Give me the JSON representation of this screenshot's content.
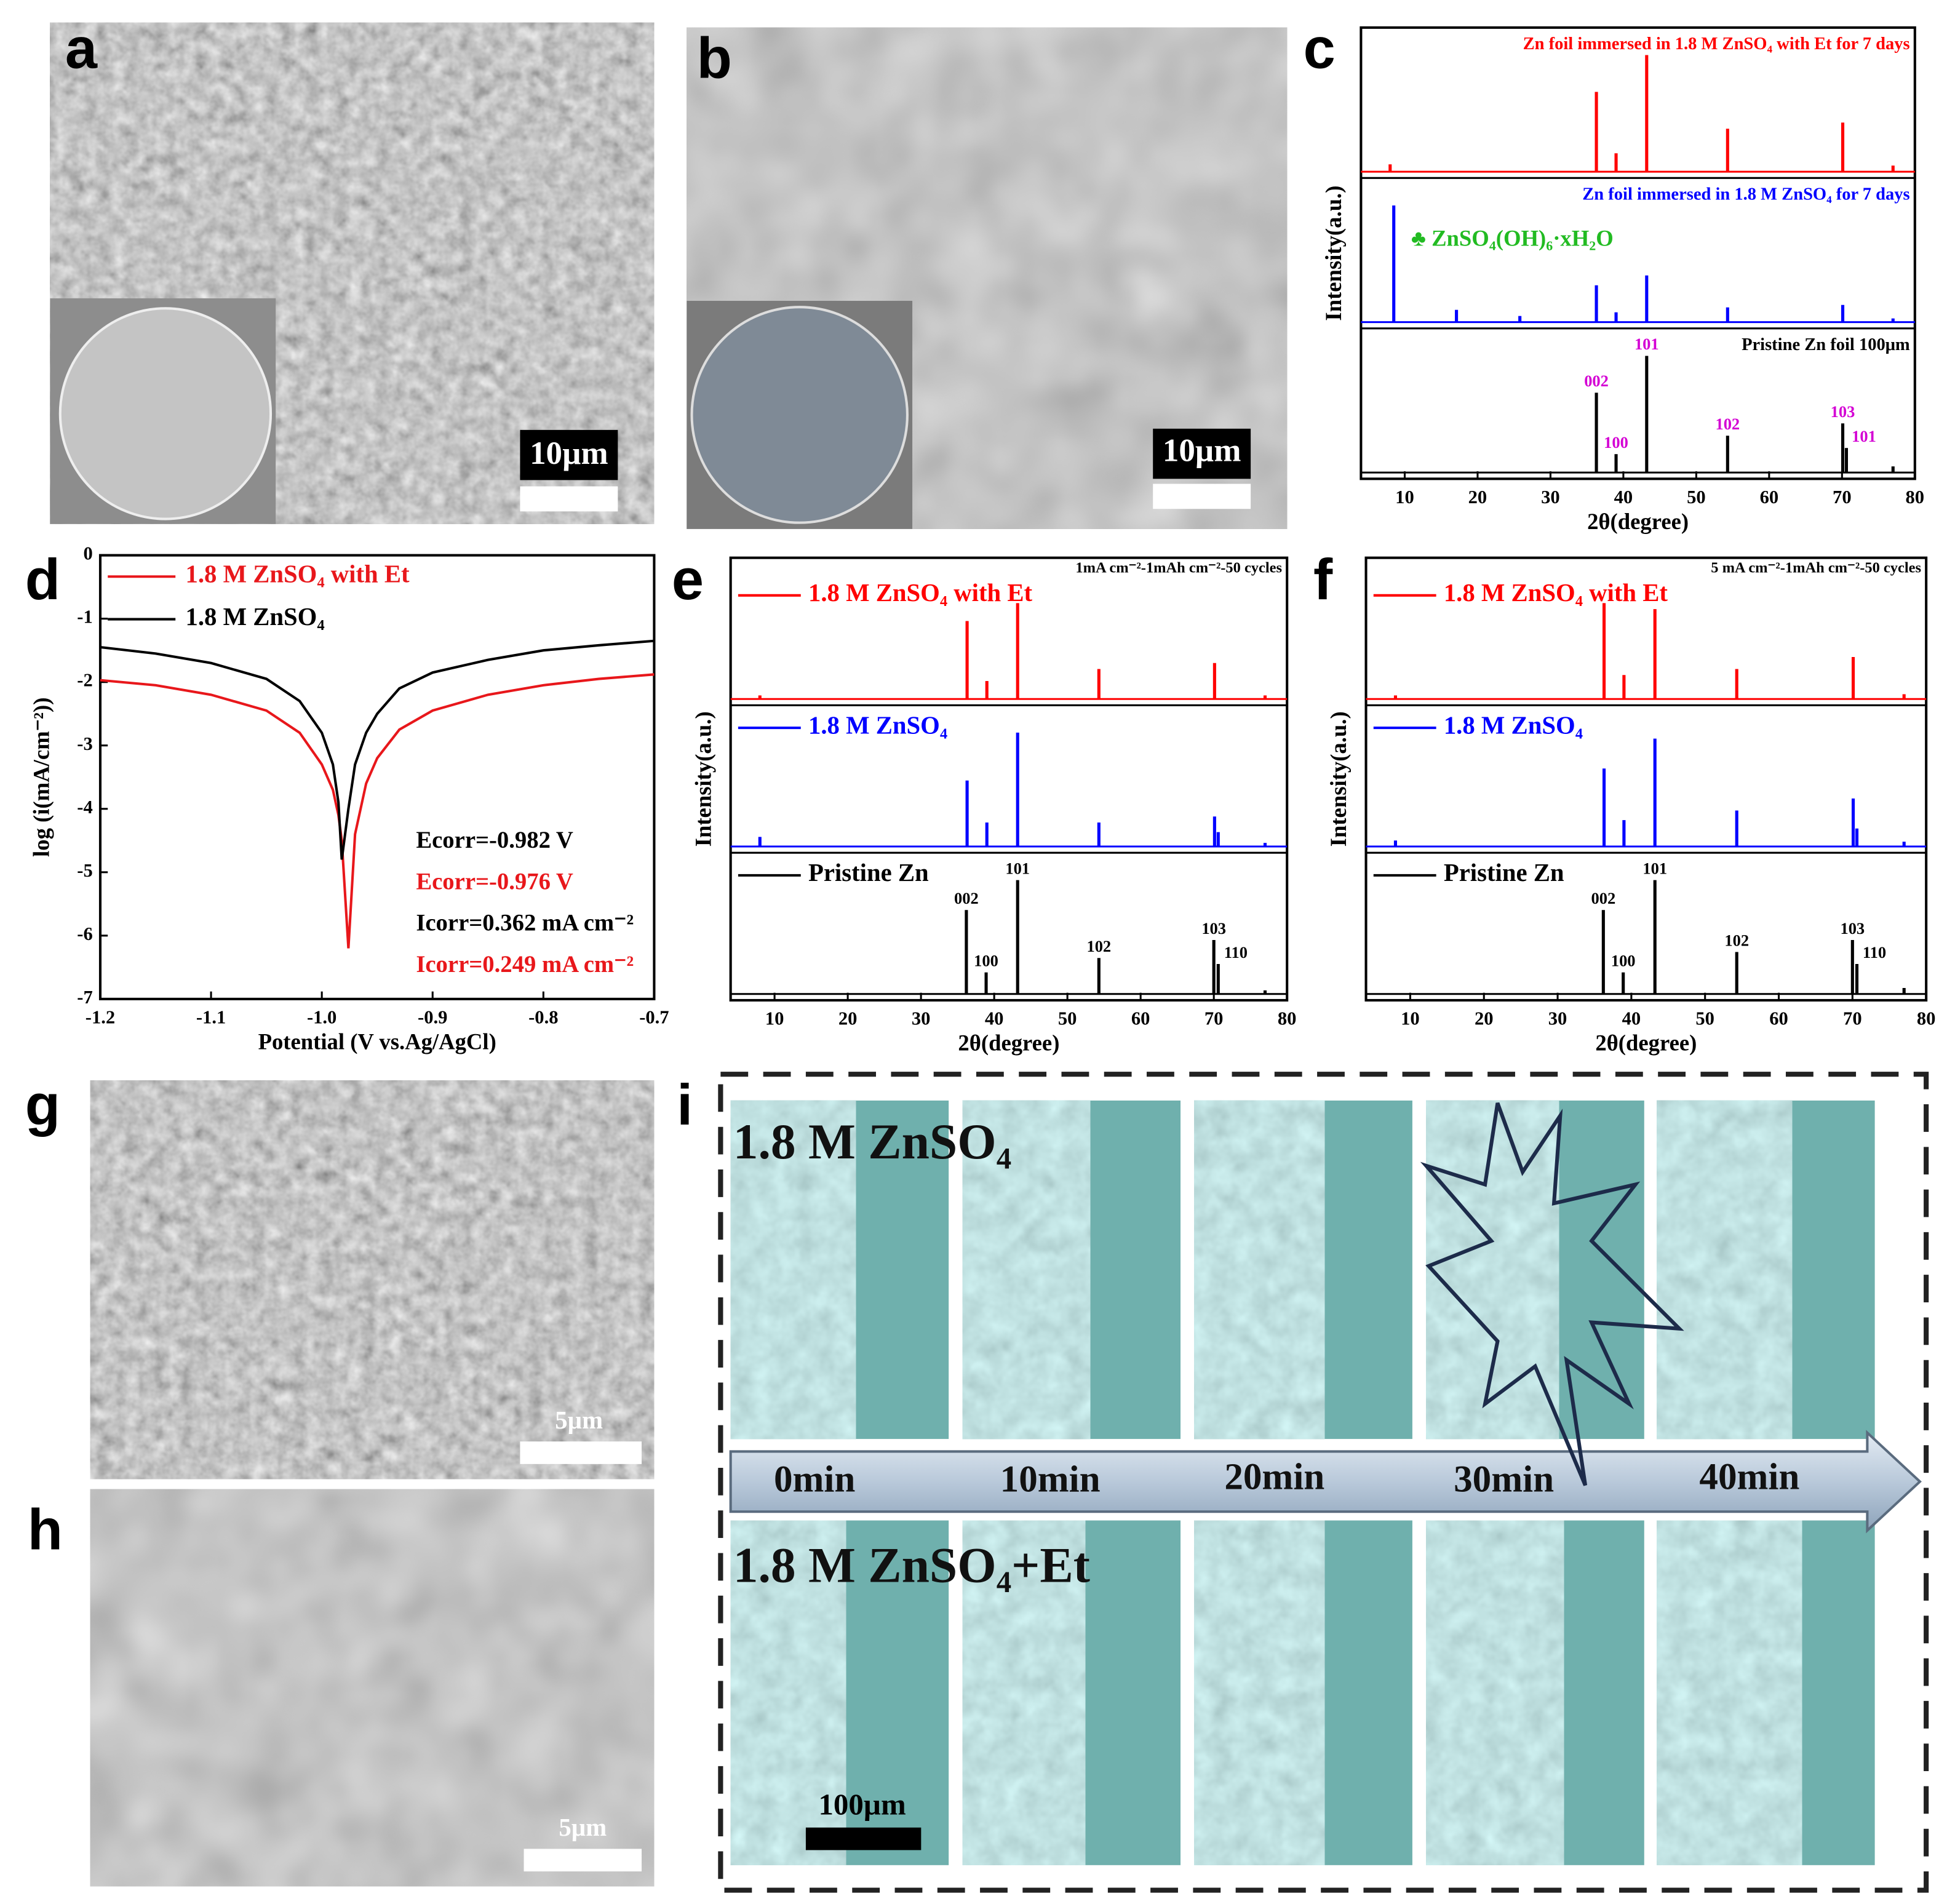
{
  "panel_labels": [
    "a",
    "b",
    "c",
    "d",
    "e",
    "f",
    "g",
    "h",
    "i"
  ],
  "images": {
    "a": {
      "scale_bar": "10µm"
    },
    "b": {
      "scale_bar": "10µm"
    },
    "g": {
      "scale_bar": "5µm"
    },
    "h": {
      "scale_bar": "5µm"
    },
    "i": {
      "rows": [
        "1.8 M ZnSO₄",
        "1.8 M ZnSO₄+Et"
      ],
      "times": [
        "0min",
        "10min",
        "20min",
        "30min",
        "40min"
      ],
      "scale_bar": "100µm"
    }
  },
  "chart_data": [
    {
      "type": "xrd",
      "xlabel": "2θ(degree)",
      "ylabel": "Intensity(a.u.)",
      "xlim": [
        4,
        80
      ],
      "xticks": [
        10,
        20,
        30,
        40,
        50,
        60,
        70,
        80
      ],
      "ylim": [
        0,
        1
      ],
      "legend_style": "text",
      "peak_label_color": "#d400d4",
      "series": [
        {
          "name": "Zn foil immersed in 1.8 M ZnSO₄ with Et for 7 days",
          "color": "#ff0000",
          "x": [
            8.0,
            36.3,
            39.0,
            43.2,
            54.3,
            70.1,
            77.0
          ],
          "values": [
            0.06,
            0.65,
            0.15,
            0.95,
            0.35,
            0.4,
            0.05
          ]
        },
        {
          "name": "Zn foil immersed in 1.8 M ZnSO₄ for 7 days",
          "color": "#0000ff",
          "x": [
            8.5,
            17.1,
            25.8,
            36.3,
            39.0,
            43.2,
            54.3,
            70.1,
            77.0
          ],
          "values": [
            0.95,
            0.1,
            0.05,
            0.3,
            0.08,
            0.38,
            0.12,
            0.14,
            0.03
          ]
        },
        {
          "name": "Pristine Zn foil 100μm",
          "color": "#000000",
          "x": [
            36.3,
            39.0,
            43.2,
            54.3,
            70.1,
            70.6,
            77.0
          ],
          "values": [
            0.65,
            0.15,
            0.95,
            0.3,
            0.4,
            0.2,
            0.05
          ]
        }
      ],
      "peak_labels": [
        {
          "x": 36.3,
          "text": "002"
        },
        {
          "x": 39.0,
          "text": "100"
        },
        {
          "x": 43.2,
          "text": "101"
        },
        {
          "x": 54.3,
          "text": "102"
        },
        {
          "x": 70.1,
          "text": "103"
        },
        {
          "x": 70.6,
          "text": "101"
        }
      ],
      "annotations": [
        {
          "text": "♣ ZnSO₄(OH)₆·xH₂O",
          "color": "#22bb22"
        }
      ]
    },
    {
      "type": "line",
      "xlabel": "Potential (V vs.Ag/AgCl)",
      "ylabel": "log (i(mA/cm⁻²))",
      "xlim": [
        -1.2,
        -0.7
      ],
      "xticks": [
        -1.2,
        -1.1,
        {
          "value": -1,
          "label": "-1.0"
        },
        -0.9,
        -0.8,
        -0.7
      ],
      "ylim": [
        -7,
        0
      ],
      "yticks": [
        0,
        -1,
        -2,
        -3,
        -4,
        -5,
        -6,
        -7
      ],
      "x": [
        -1.2,
        -1.15,
        -1.1,
        -1.05,
        -1.02,
        -1.0,
        -0.99,
        -0.985,
        -0.982,
        -0.976,
        -0.97,
        -0.96,
        -0.95,
        -0.93,
        -0.9,
        -0.85,
        -0.8,
        -0.75,
        -0.7
      ],
      "series": [
        {
          "name": "1.8 M ZnSO₄ with Et",
          "color": "#e8171b",
          "values": [
            -1.97,
            -2.05,
            -2.2,
            -2.45,
            -2.8,
            -3.3,
            -3.7,
            -4.1,
            -4.5,
            -6.2,
            -4.4,
            -3.6,
            -3.2,
            -2.75,
            -2.45,
            -2.2,
            -2.05,
            -1.95,
            -1.88
          ]
        },
        {
          "name": "1.8 M ZnSO₄",
          "color": "#000000",
          "values": [
            -1.45,
            -1.55,
            -1.7,
            -1.95,
            -2.3,
            -2.8,
            -3.3,
            -3.9,
            -4.8,
            -4.0,
            -3.3,
            -2.8,
            -2.5,
            -2.1,
            -1.85,
            -1.65,
            -1.5,
            -1.42,
            -1.35
          ]
        }
      ],
      "annotations": [
        {
          "text": "Ecorr=-0.982 V",
          "color": "#000000"
        },
        {
          "text": "Ecorr=-0.976 V",
          "color": "#e8171b"
        },
        {
          "text": "Icorr=0.362 mA cm⁻²",
          "color": "#000000"
        },
        {
          "text": "Icorr=0.249 mA cm⁻²",
          "color": "#e8171b"
        }
      ]
    },
    {
      "type": "xrd",
      "subtitle": "1mA cm⁻²-1mAh cm⁻²-50 cycles",
      "xlabel": "2θ(degree)",
      "ylabel": "Intensity(a.u.)",
      "xlim": [
        4,
        80
      ],
      "xticks": [
        10,
        20,
        30,
        40,
        50,
        60,
        70,
        80
      ],
      "ylim": [
        0,
        1
      ],
      "legend_style": "line",
      "peak_label_color": "#000000",
      "series": [
        {
          "name": "1.8 M ZnSO₄ with Et",
          "color": "#ff0000",
          "x": [
            8.0,
            36.3,
            39.0,
            43.2,
            54.3,
            70.1,
            77.0
          ],
          "values": [
            0.03,
            0.65,
            0.15,
            0.8,
            0.25,
            0.3,
            0.03
          ]
        },
        {
          "name": "1.8 M ZnSO₄",
          "color": "#0000ff",
          "x": [
            8.0,
            36.3,
            39.0,
            43.2,
            54.3,
            70.1,
            70.6,
            77.0
          ],
          "values": [
            0.08,
            0.55,
            0.2,
            0.95,
            0.2,
            0.25,
            0.12,
            0.03
          ]
        },
        {
          "name": "Pristine Zn",
          "color": "#000000",
          "x": [
            36.2,
            38.9,
            43.2,
            54.3,
            70.0,
            70.6,
            77.0
          ],
          "values": [
            0.7,
            0.18,
            0.95,
            0.3,
            0.45,
            0.25,
            0.03
          ]
        }
      ],
      "peak_labels": [
        {
          "x": 36.2,
          "text": "002"
        },
        {
          "x": 38.9,
          "text": "100"
        },
        {
          "x": 43.2,
          "text": "101"
        },
        {
          "x": 54.3,
          "text": "102"
        },
        {
          "x": 70.0,
          "text": "103"
        },
        {
          "x": 70.6,
          "text": "110"
        }
      ]
    },
    {
      "type": "xrd",
      "subtitle": "5 mA cm⁻²-1mAh cm⁻²-50 cycles",
      "xlabel": "2θ(degree)",
      "ylabel": "Intensity(a.u.)",
      "xlim": [
        4,
        80
      ],
      "xticks": [
        10,
        20,
        30,
        40,
        50,
        60,
        70,
        80
      ],
      "ylim": [
        0,
        1
      ],
      "legend_style": "line",
      "peak_label_color": "#000000",
      "series": [
        {
          "name": "1.8 M ZnSO₄ with Et",
          "color": "#ff0000",
          "x": [
            8.0,
            36.3,
            39.0,
            43.2,
            54.3,
            70.1,
            77.0
          ],
          "values": [
            0.03,
            0.8,
            0.2,
            0.75,
            0.25,
            0.35,
            0.04
          ]
        },
        {
          "name": "1.8 M ZnSO₄",
          "color": "#0000ff",
          "x": [
            8.0,
            36.3,
            39.0,
            43.2,
            54.3,
            70.1,
            70.6,
            77.0
          ],
          "values": [
            0.05,
            0.65,
            0.22,
            0.9,
            0.3,
            0.4,
            0.15,
            0.04
          ]
        },
        {
          "name": "Pristine Zn",
          "color": "#000000",
          "x": [
            36.2,
            38.9,
            43.2,
            54.3,
            70.0,
            70.6,
            77.0
          ],
          "values": [
            0.7,
            0.18,
            0.95,
            0.35,
            0.45,
            0.25,
            0.05
          ]
        }
      ],
      "peak_labels": [
        {
          "x": 36.2,
          "text": "002"
        },
        {
          "x": 38.9,
          "text": "100"
        },
        {
          "x": 43.2,
          "text": "101"
        },
        {
          "x": 54.3,
          "text": "102"
        },
        {
          "x": 70.0,
          "text": "103"
        },
        {
          "x": 70.6,
          "text": "110"
        }
      ]
    }
  ]
}
